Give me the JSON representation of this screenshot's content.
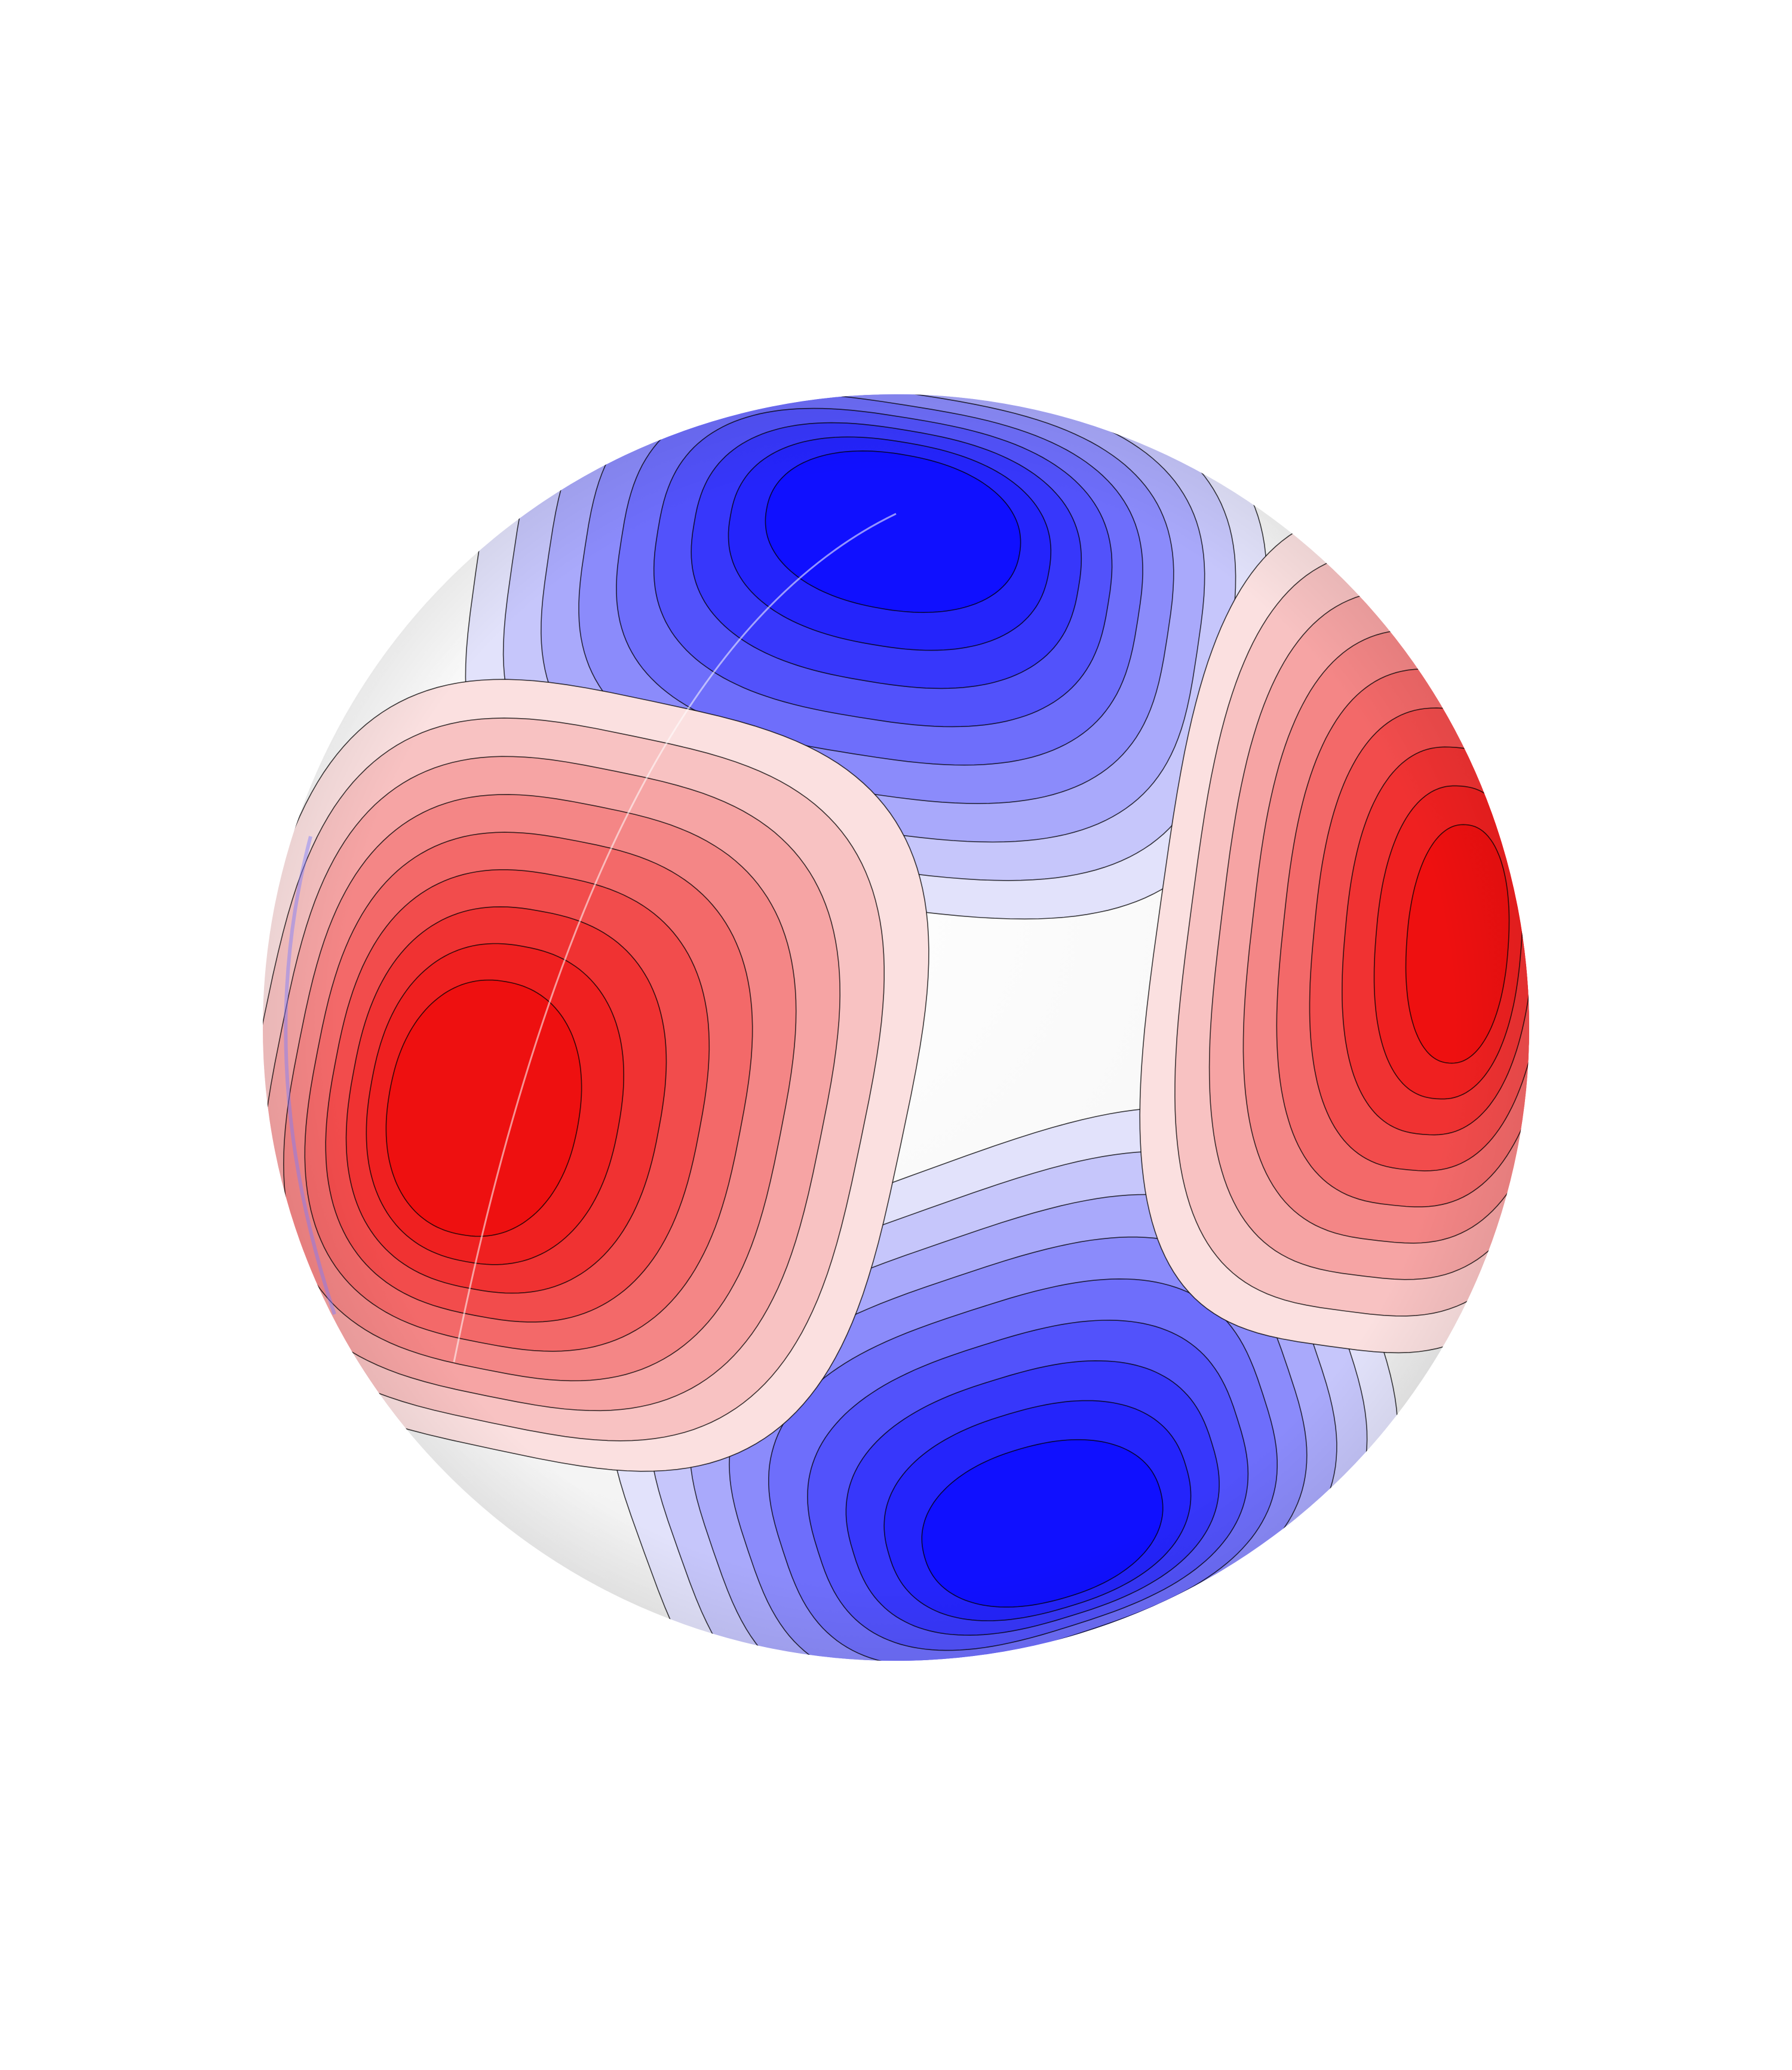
{
  "scene": {
    "subject": "sphere",
    "background": "#ffffff",
    "sphere_base_color": "#f7f7f7",
    "contour_line_color": "#000000",
    "lobes": [
      {
        "name": "top-lobe",
        "sign": "negative",
        "hue": "blue",
        "peak_color": "#1010ff"
      },
      {
        "name": "bottom-lobe",
        "sign": "negative",
        "hue": "blue",
        "peak_color": "#1010ff"
      },
      {
        "name": "left-lobe",
        "sign": "positive",
        "hue": "red",
        "peak_color": "#ee1010"
      },
      {
        "name": "right-lobe",
        "sign": "positive",
        "hue": "red",
        "peak_color": "#ff1515"
      }
    ],
    "contour_levels_per_lobe": 9,
    "level_colors_blue": [
      "#e2e2fb",
      "#c6c6fb",
      "#a9a9fb",
      "#8b8bfb",
      "#6e6efb",
      "#5252fb",
      "#3737fb",
      "#2424fb",
      "#1010ff"
    ],
    "level_colors_red": [
      "#fbe0e0",
      "#f8c2c2",
      "#f6a4a4",
      "#f48686",
      "#f36969",
      "#f24c4c",
      "#f03232",
      "#ef2020",
      "#ee1010"
    ]
  }
}
